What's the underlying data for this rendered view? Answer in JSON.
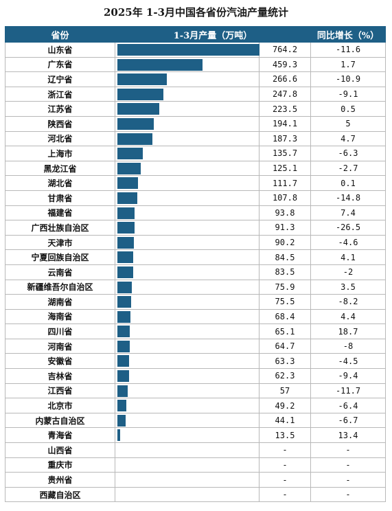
{
  "title": "2025年 1-3月中国各省份汽油产量统计",
  "chart_data": {
    "type": "table",
    "columns": [
      "省份",
      "1-3月产量（万吨）",
      "同比增长（%）"
    ],
    "bar_color": "#1e5f86",
    "rows": [
      {
        "province": "山东省",
        "output": "764.2",
        "growth": "-11.6"
      },
      {
        "province": "广东省",
        "output": "459.3",
        "growth": "1.7"
      },
      {
        "province": "辽宁省",
        "output": "266.6",
        "growth": "-10.9"
      },
      {
        "province": "浙江省",
        "output": "247.8",
        "growth": "-9.1"
      },
      {
        "province": "江苏省",
        "output": "223.5",
        "growth": "0.5"
      },
      {
        "province": "陕西省",
        "output": "194.1",
        "growth": "5"
      },
      {
        "province": "河北省",
        "output": "187.3",
        "growth": "4.7"
      },
      {
        "province": "上海市",
        "output": "135.7",
        "growth": "-6.3"
      },
      {
        "province": "黑龙江省",
        "output": "125.1",
        "growth": "-2.7"
      },
      {
        "province": "湖北省",
        "output": "111.7",
        "growth": "0.1"
      },
      {
        "province": "甘肃省",
        "output": "107.8",
        "growth": "-14.8"
      },
      {
        "province": "福建省",
        "output": "93.8",
        "growth": "7.4"
      },
      {
        "province": "广西壮族自治区",
        "output": "91.3",
        "growth": "-26.5"
      },
      {
        "province": "天津市",
        "output": "90.2",
        "growth": "-4.6"
      },
      {
        "province": "宁夏回族自治区",
        "output": "84.5",
        "growth": "4.1"
      },
      {
        "province": "云南省",
        "output": "83.5",
        "growth": "-2"
      },
      {
        "province": "新疆维吾尔自治区",
        "output": "75.9",
        "growth": "3.5"
      },
      {
        "province": "湖南省",
        "output": "75.5",
        "growth": "-8.2"
      },
      {
        "province": "海南省",
        "output": "68.4",
        "growth": "4.4"
      },
      {
        "province": "四川省",
        "output": "65.1",
        "growth": "18.7"
      },
      {
        "province": "河南省",
        "output": "64.7",
        "growth": "-8"
      },
      {
        "province": "安徽省",
        "output": "63.3",
        "growth": "-4.5"
      },
      {
        "province": "吉林省",
        "output": "62.3",
        "growth": "-9.4"
      },
      {
        "province": "江西省",
        "output": "57",
        "growth": "-11.7"
      },
      {
        "province": "北京市",
        "output": "49.2",
        "growth": "-6.4"
      },
      {
        "province": "内蒙古自治区",
        "output": "44.1",
        "growth": "-6.7"
      },
      {
        "province": "青海省",
        "output": "13.5",
        "growth": "13.4"
      },
      {
        "province": "山西省",
        "output": "-",
        "growth": "-"
      },
      {
        "province": "重庆市",
        "output": "-",
        "growth": "-"
      },
      {
        "province": "贵州省",
        "output": "-",
        "growth": "-"
      },
      {
        "province": "西藏自治区",
        "output": "-",
        "growth": "-"
      }
    ]
  }
}
